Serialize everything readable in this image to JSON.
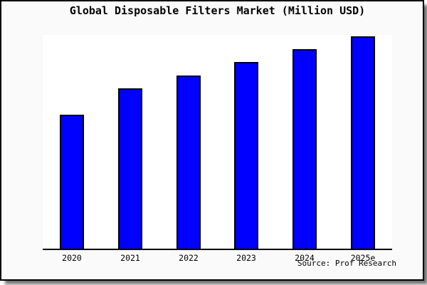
{
  "title": "Global Disposable Filters Market (Million USD)",
  "source": "Source: Prof Research",
  "colors": {
    "bar_fill": "#0000ff",
    "bar_border": "#000000",
    "panel_background": "#fafafa",
    "plot_background": "#ffffff",
    "axis": "#000000",
    "text": "#000000",
    "shadow": "#999999"
  },
  "chart_data": {
    "type": "bar",
    "title": "Global Disposable Filters Market (Million USD)",
    "categories": [
      "2020",
      "2021",
      "2022",
      "2023",
      "2024",
      "2025e"
    ],
    "values": [
      63,
      75.4,
      81.7,
      87.9,
      93.9,
      100
    ],
    "value_note": "no y-axis shown; values are relative heights indexed to 2025e = 100",
    "xlabel": "",
    "ylabel": "",
    "ylim": [
      0,
      100.7
    ],
    "grid": false,
    "legend": false,
    "annotation": "Source: Prof Research"
  }
}
